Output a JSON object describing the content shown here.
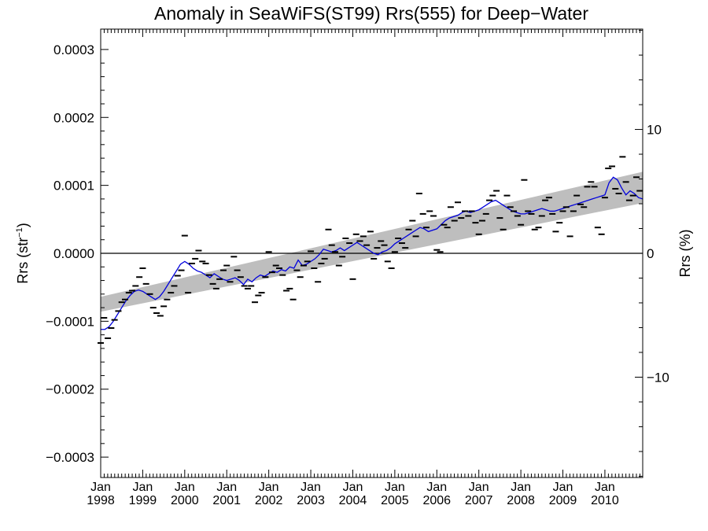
{
  "chart_data": {
    "type": "scatter",
    "title": "Anomaly in SeaWiFS(ST99) Rrs(555) for Deep−Water",
    "ylabel": "Rrs (str",
    "ylabel_sup": "−1",
    "ylabel_close": ")",
    "y2label": "Rrs (%)",
    "ylim": [
      -0.00033,
      0.00033
    ],
    "y2lim": [
      -18.1,
      18.1
    ],
    "xlim": [
      1998.0,
      2010.9
    ],
    "y_ticks": [
      {
        "value": 0.0003,
        "label": "0.0003"
      },
      {
        "value": 0.0002,
        "label": "0.0002"
      },
      {
        "value": 0.0001,
        "label": "0.0001"
      },
      {
        "value": 0.0,
        "label": "0.0000"
      },
      {
        "value": -0.0001,
        "label": "−0.0001"
      },
      {
        "value": -0.0002,
        "label": "−0.0002"
      },
      {
        "value": -0.0003,
        "label": "−0.0003"
      }
    ],
    "y2_ticks": [
      {
        "value": 10,
        "label": "10"
      },
      {
        "value": 0,
        "label": "0"
      },
      {
        "value": -10,
        "label": "−10"
      }
    ],
    "x_ticks": [
      {
        "value": 1998,
        "month": "Jan",
        "year": "1998"
      },
      {
        "value": 1999,
        "month": "Jan",
        "year": "1999"
      },
      {
        "value": 2000,
        "month": "Jan",
        "year": "2000"
      },
      {
        "value": 2001,
        "month": "Jan",
        "year": "2001"
      },
      {
        "value": 2002,
        "month": "Jan",
        "year": "2002"
      },
      {
        "value": 2003,
        "month": "Jan",
        "year": "2003"
      },
      {
        "value": 2004,
        "month": "Jan",
        "year": "2004"
      },
      {
        "value": 2005,
        "month": "Jan",
        "year": "2005"
      },
      {
        "value": 2006,
        "month": "Jan",
        "year": "2006"
      },
      {
        "value": 2007,
        "month": "Jan",
        "year": "2007"
      },
      {
        "value": 2008,
        "month": "Jan",
        "year": "2008"
      },
      {
        "value": 2009,
        "month": "Jan",
        "year": "2009"
      },
      {
        "value": 2010,
        "month": "Jan",
        "year": "2010"
      }
    ],
    "trend_band": {
      "x": [
        1998.0,
        2010.9
      ],
      "lower": [
        -8.6e-05,
        7.4e-05
      ],
      "upper": [
        -6.4e-05,
        0.00012
      ],
      "color": "#bebebe"
    },
    "zero_line": 0.0,
    "series": [
      {
        "role": "monthly_anomaly",
        "color": "#000000",
        "marker": "dash",
        "x": [
          1998.0,
          1998.08,
          1998.17,
          1998.25,
          1998.33,
          1998.42,
          1998.5,
          1998.58,
          1998.67,
          1998.75,
          1998.83,
          1998.92,
          1999.0,
          1999.08,
          1999.17,
          1999.25,
          1999.33,
          1999.42,
          1999.5,
          1999.58,
          1999.67,
          1999.75,
          1999.83,
          1999.92,
          2000.0,
          2000.08,
          2000.17,
          2000.25,
          2000.33,
          2000.42,
          2000.5,
          2000.58,
          2000.67,
          2000.75,
          2000.83,
          2000.92,
          2001.0,
          2001.08,
          2001.17,
          2001.25,
          2001.33,
          2001.42,
          2001.5,
          2001.58,
          2001.67,
          2001.75,
          2001.83,
          2001.92,
          2002.0,
          2002.08,
          2002.17,
          2002.25,
          2002.33,
          2002.42,
          2002.5,
          2002.58,
          2002.67,
          2002.75,
          2002.83,
          2002.92,
          2003.0,
          2003.08,
          2003.17,
          2003.25,
          2003.33,
          2003.42,
          2003.5,
          2003.58,
          2003.67,
          2003.75,
          2003.83,
          2003.92,
          2004.0,
          2004.08,
          2004.17,
          2004.25,
          2004.33,
          2004.42,
          2004.5,
          2004.58,
          2004.67,
          2004.75,
          2004.83,
          2004.92,
          2005.0,
          2005.08,
          2005.17,
          2005.25,
          2005.33,
          2005.42,
          2005.5,
          2005.58,
          2005.67,
          2005.75,
          2005.83,
          2005.92,
          2006.0,
          2006.08,
          2006.17,
          2006.25,
          2006.33,
          2006.42,
          2006.5,
          2006.58,
          2006.67,
          2006.75,
          2006.83,
          2006.92,
          2007.0,
          2007.08,
          2007.17,
          2007.25,
          2007.33,
          2007.42,
          2007.5,
          2007.58,
          2007.67,
          2007.75,
          2007.83,
          2007.92,
          2008.0,
          2008.08,
          2008.17,
          2008.25,
          2008.33,
          2008.42,
          2008.5,
          2008.58,
          2008.67,
          2008.75,
          2008.83,
          2008.92,
          2009.0,
          2009.08,
          2009.17,
          2009.25,
          2009.33,
          2009.42,
          2009.5,
          2009.58,
          2009.67,
          2009.75,
          2009.83,
          2009.92,
          2010.0,
          2010.08,
          2010.17,
          2010.25,
          2010.33,
          2010.42,
          2010.5,
          2010.58,
          2010.67,
          2010.75,
          2010.83
        ],
        "y": [
          -0.000132,
          -9.5e-05,
          -0.000125,
          -0.00011,
          -9.8e-05,
          -8.5e-05,
          -7.2e-05,
          -6.8e-05,
          -5.8e-05,
          -5.5e-05,
          -4.8e-05,
          -3.5e-05,
          -2.2e-05,
          -4.5e-05,
          -6e-05,
          -8e-05,
          -8.8e-05,
          -9.2e-05,
          -7.8e-05,
          -6.8e-05,
          -5.8e-05,
          -4.8e-05,
          -3.3e-05,
          -2.5e-05,
          2.6e-05,
          -5.8e-05,
          -1.5e-05,
          -8e-06,
          4e-06,
          -1.2e-05,
          -1.5e-05,
          -3.2e-05,
          -4.5e-05,
          -5.2e-05,
          -3.8e-05,
          -2.5e-05,
          -1.8e-05,
          -4.2e-05,
          -5e-06,
          -2.5e-05,
          -3.5e-05,
          -4.8e-05,
          -5.2e-05,
          -4.8e-05,
          -7.2e-05,
          -6.2e-05,
          -5.8e-05,
          -3.5e-05,
          2e-06,
          -2.8e-05,
          -1.8e-05,
          -2.2e-05,
          -3.2e-05,
          -5.5e-05,
          -5.2e-05,
          -6.8e-05,
          -2.5e-05,
          -3.5e-05,
          -1.8e-05,
          -1.2e-05,
          3e-06,
          -2.2e-05,
          -4.2e-05,
          -1.5e-05,
          -8e-06,
          3.5e-05,
          1.2e-05,
          2e-06,
          -1.8e-05,
          -5e-06,
          2.2e-05,
          1.5e-05,
          -3.8e-05,
          2.8e-05,
          1.8e-05,
          2.5e-05,
          1.2e-05,
          3.2e-05,
          -8e-06,
          8e-06,
          1.8e-05,
          1.2e-05,
          -1.2e-05,
          -2.2e-05,
          2e-06,
          2.2e-05,
          1.5e-05,
          8e-06,
          3.5e-05,
          4.8e-05,
          2.5e-05,
          8.8e-05,
          5.8e-05,
          3.8e-05,
          6.2e-05,
          5.5e-05,
          5e-06,
          2e-06,
          4.2e-05,
          3.8e-05,
          6.8e-05,
          4.8e-05,
          7.5e-05,
          5.2e-05,
          6.2e-05,
          5.5e-05,
          6.2e-05,
          4.5e-05,
          2.8e-05,
          4.8e-05,
          5.8e-05,
          7.8e-05,
          8.5e-05,
          9.2e-05,
          5.2e-05,
          3.5e-05,
          8.5e-05,
          6.8e-05,
          6.2e-05,
          5.5e-05,
          4.2e-05,
          0.000108,
          6.2e-05,
          5.8e-05,
          3.5e-05,
          3.8e-05,
          5.5e-05,
          7.8e-05,
          8.2e-05,
          5.8e-05,
          3.2e-05,
          4.5e-05,
          6.2e-05,
          6.8e-05,
          2.5e-05,
          6.2e-05,
          8.5e-05,
          7.2e-05,
          6.8e-05,
          9.8e-05,
          0.000105,
          9.8e-05,
          3.8e-05,
          2.8e-05,
          8.2e-05,
          0.000125,
          0.000128,
          9.5e-05,
          8.8e-05,
          0.000142,
          0.000105,
          7.8e-05,
          8.5e-05,
          0.000112,
          9.2e-05
        ]
      },
      {
        "role": "running_mean",
        "color": "#0000dd",
        "x": [
          1998.0,
          1998.1,
          1998.2,
          1998.3,
          1998.4,
          1998.5,
          1998.6,
          1998.7,
          1998.8,
          1998.9,
          1999.0,
          1999.1,
          1999.2,
          1999.3,
          1999.4,
          1999.5,
          1999.6,
          1999.7,
          1999.8,
          1999.9,
          2000.0,
          2000.1,
          2000.2,
          2000.3,
          2000.4,
          2000.5,
          2000.6,
          2000.7,
          2000.8,
          2000.9,
          2001.0,
          2001.1,
          2001.2,
          2001.3,
          2001.4,
          2001.5,
          2001.6,
          2001.7,
          2001.8,
          2001.9,
          2002.0,
          2002.1,
          2002.2,
          2002.3,
          2002.4,
          2002.5,
          2002.6,
          2002.7,
          2002.8,
          2002.9,
          2003.0,
          2003.1,
          2003.2,
          2003.3,
          2003.4,
          2003.5,
          2003.6,
          2003.7,
          2003.8,
          2003.9,
          2004.0,
          2004.1,
          2004.2,
          2004.3,
          2004.4,
          2004.5,
          2004.6,
          2004.7,
          2004.8,
          2004.9,
          2005.0,
          2005.1,
          2005.2,
          2005.3,
          2005.4,
          2005.5,
          2005.6,
          2005.7,
          2005.8,
          2005.9,
          2006.0,
          2006.1,
          2006.2,
          2006.3,
          2006.4,
          2006.5,
          2006.6,
          2006.7,
          2006.8,
          2006.9,
          2007.0,
          2007.1,
          2007.2,
          2007.3,
          2007.4,
          2007.5,
          2007.6,
          2007.7,
          2007.8,
          2007.9,
          2008.0,
          2008.1,
          2008.2,
          2008.3,
          2008.4,
          2008.5,
          2008.6,
          2008.7,
          2008.8,
          2008.9,
          2009.0,
          2009.1,
          2009.2,
          2009.3,
          2009.4,
          2009.5,
          2009.6,
          2009.7,
          2009.8,
          2009.9,
          2010.0,
          2010.1,
          2010.2,
          2010.3,
          2010.4,
          2010.5,
          2010.6,
          2010.7,
          2010.8,
          2010.9
        ],
        "y": [
          -0.000112,
          -0.000112,
          -0.000108,
          -0.0001,
          -9e-05,
          -8e-05,
          -7e-05,
          -6.2e-05,
          -5.6e-05,
          -5.4e-05,
          -5.6e-05,
          -6e-05,
          -6.4e-05,
          -6.8e-05,
          -6.4e-05,
          -5.6e-05,
          -4.6e-05,
          -3.6e-05,
          -2.6e-05,
          -1.6e-05,
          -1.2e-05,
          -1.6e-05,
          -2.2e-05,
          -2.6e-05,
          -2.8e-05,
          -3.2e-05,
          -3.6e-05,
          -3e-05,
          -3.4e-05,
          -3.8e-05,
          -4e-05,
          -3.8e-05,
          -3.6e-05,
          -4e-05,
          -4.6e-05,
          -3.8e-05,
          -4.2e-05,
          -3.6e-05,
          -3.2e-05,
          -3.4e-05,
          -3e-05,
          -2.6e-05,
          -2.8e-05,
          -2.4e-05,
          -2.6e-05,
          -2e-05,
          -2.2e-05,
          -1e-05,
          -1.8e-05,
          -1.6e-05,
          -1.2e-05,
          -8e-06,
          -2e-06,
          6e-06,
          4e-06,
          2e-06,
          4e-06,
          8e-06,
          4e-06,
          8e-06,
          1.2e-05,
          1.6e-05,
          1.2e-05,
          8e-06,
          4e-06,
          0.0,
          -2e-06,
          2e-06,
          4e-06,
          8e-06,
          1.4e-05,
          1.8e-05,
          2.2e-05,
          2.6e-05,
          3e-05,
          3.4e-05,
          3.8e-05,
          3.6e-05,
          3.2e-05,
          3.4e-05,
          3.6e-05,
          4.2e-05,
          4.8e-05,
          5.2e-05,
          5.4e-05,
          5.6e-05,
          6e-05,
          6.2e-05,
          6e-05,
          6.2e-05,
          6.4e-05,
          6.8e-05,
          7.2e-05,
          7.6e-05,
          7.8e-05,
          7.4e-05,
          7e-05,
          6.6e-05,
          6.2e-05,
          6e-05,
          5.8e-05,
          5.8e-05,
          6e-05,
          6.2e-05,
          6.4e-05,
          6.6e-05,
          6.4e-05,
          6.2e-05,
          6.2e-05,
          6.4e-05,
          6.6e-05,
          6.8e-05,
          7e-05,
          7.2e-05,
          7.4e-05,
          7.6e-05,
          7.8e-05,
          8e-05,
          8.2e-05,
          8.4e-05,
          8.6e-05,
          0.000104,
          0.000112,
          0.000108,
          9.6e-05,
          8.6e-05,
          9.2e-05,
          8.8e-05,
          8.2e-05,
          8e-05
        ]
      }
    ]
  }
}
